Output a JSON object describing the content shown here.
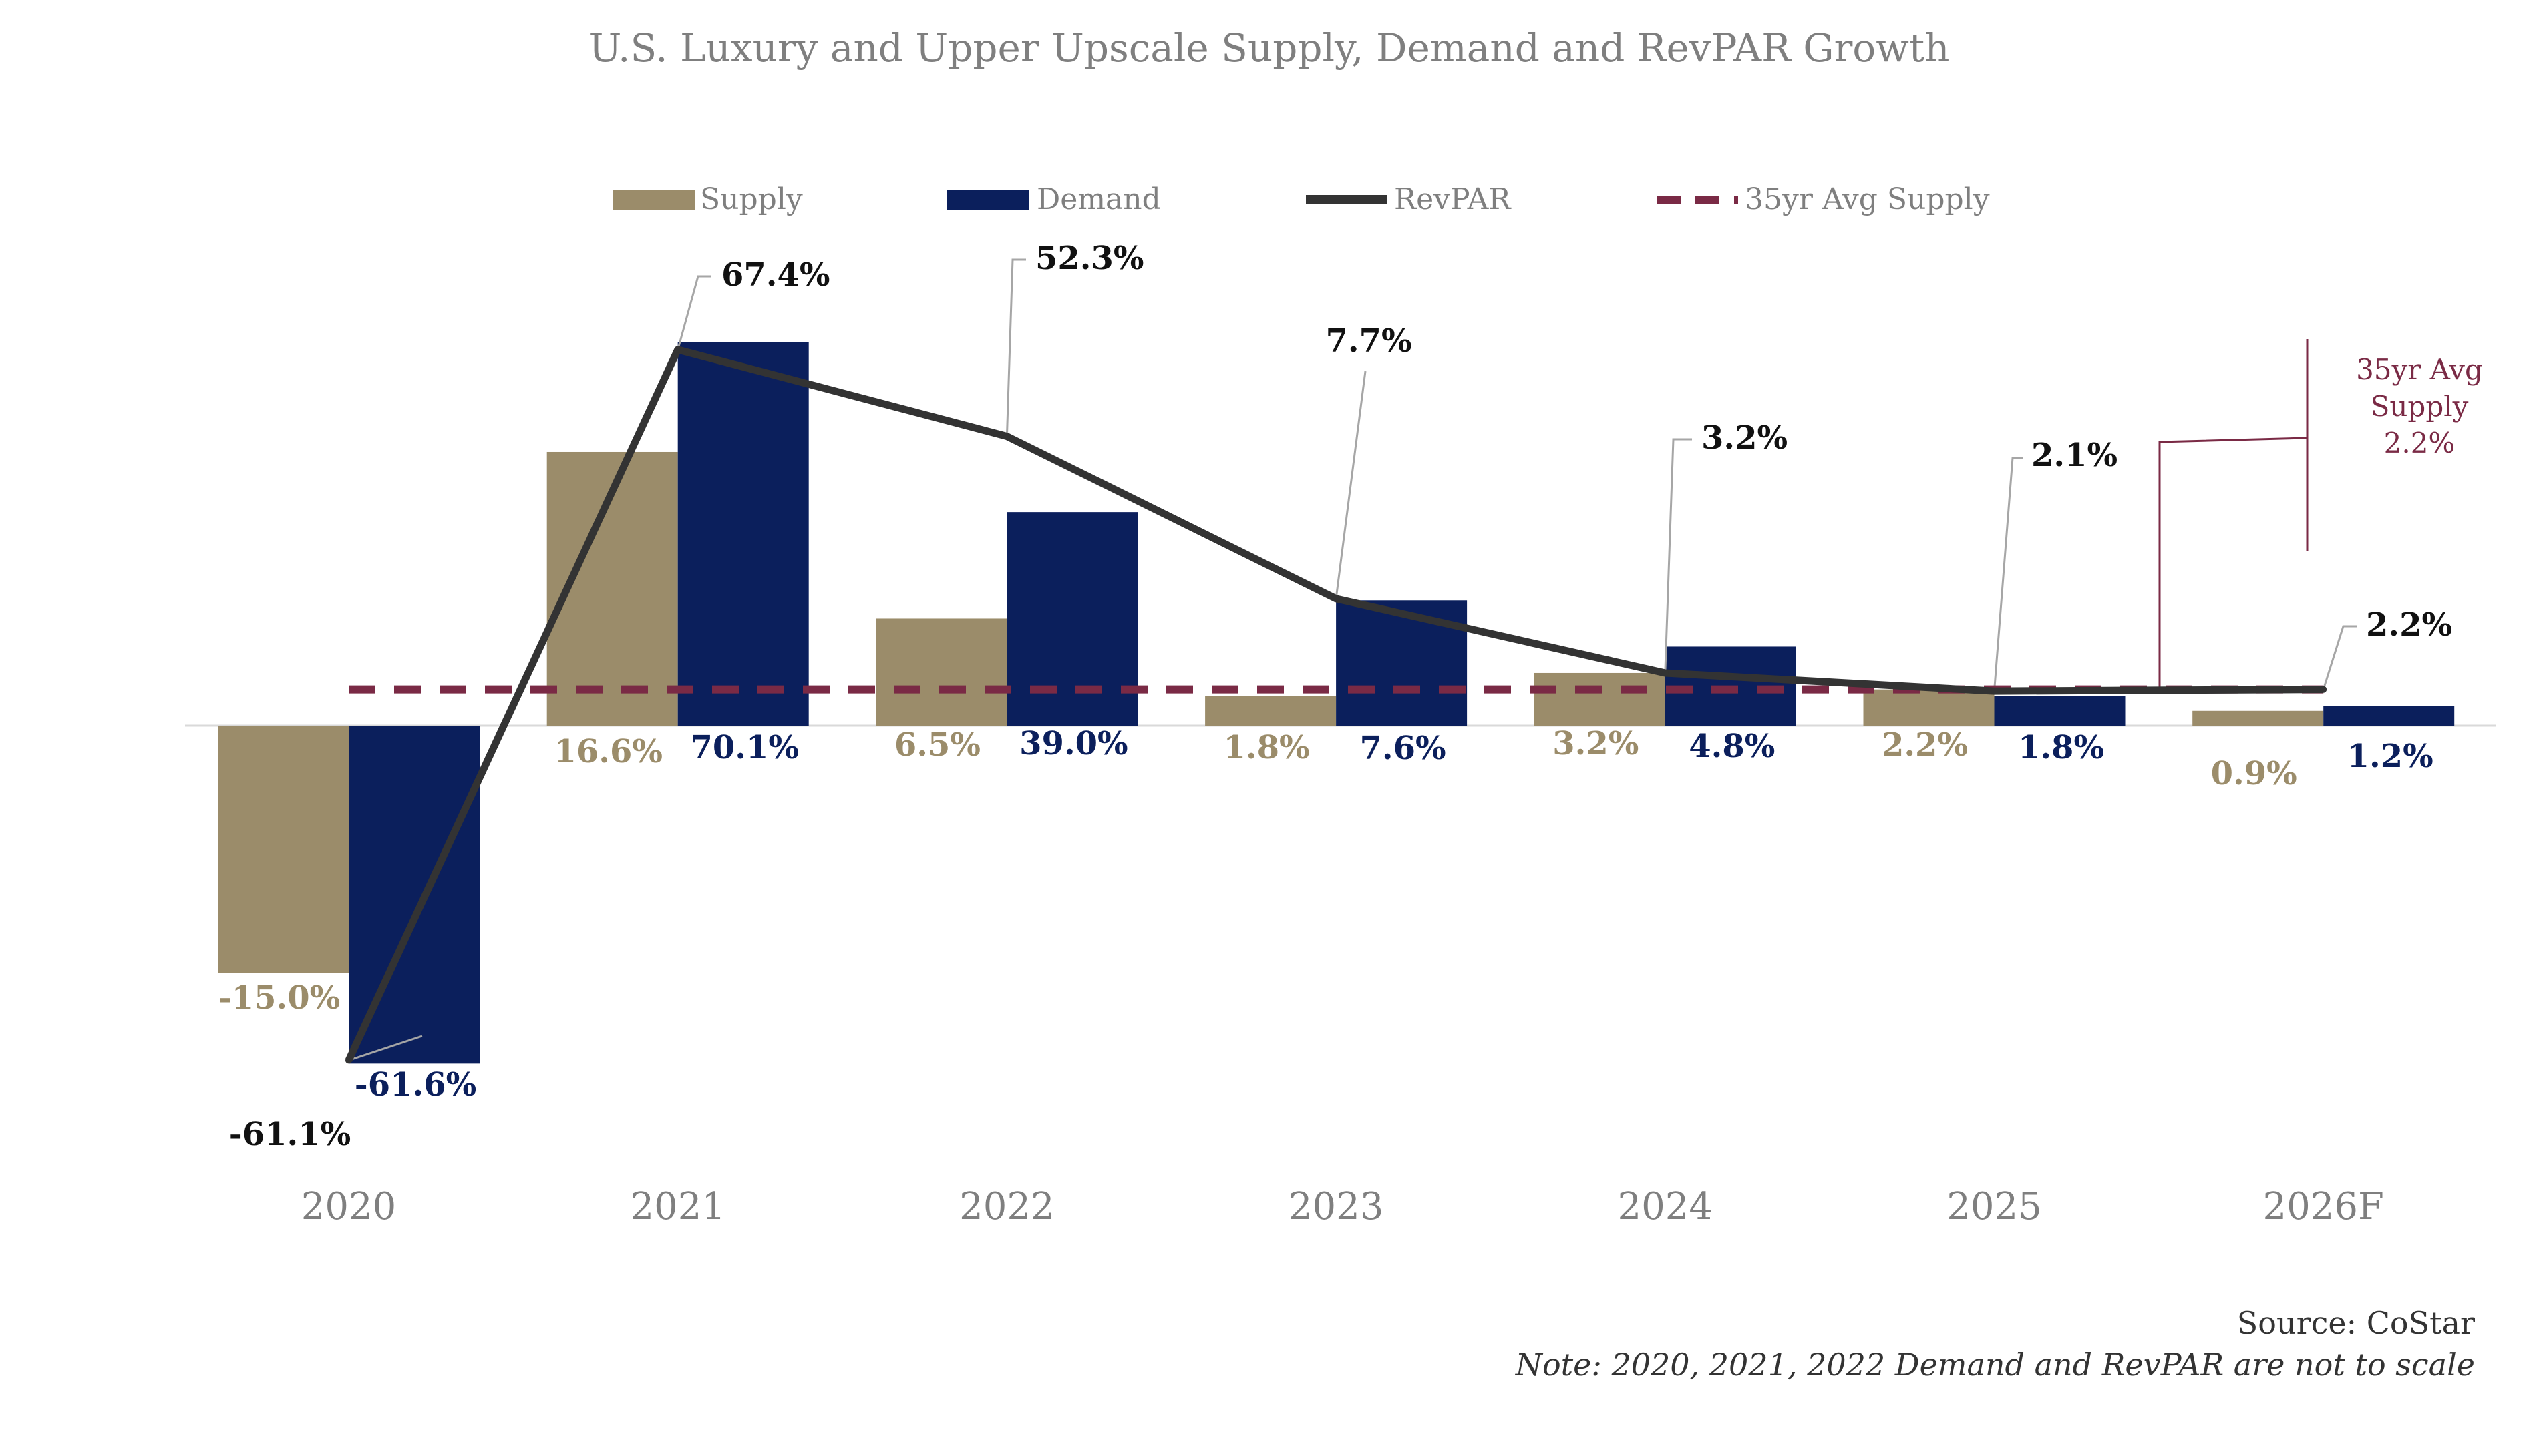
{
  "chart_data": {
    "type": "bar",
    "title": "U.S. Luxury and Upper Upscale Supply, Demand and RevPAR Growth",
    "categories": [
      "2020",
      "2021",
      "2022",
      "2023",
      "2024",
      "2025",
      "2026F"
    ],
    "series": [
      {
        "name": "Supply",
        "kind": "bar",
        "color": "#9b8c6a",
        "values": [
          -15.0,
          16.6,
          6.5,
          1.8,
          3.2,
          2.2,
          0.9
        ],
        "labels": [
          "-15.0%",
          "16.6%",
          "6.5%",
          "1.8%",
          "3.2%",
          "2.2%",
          "0.9%"
        ]
      },
      {
        "name": "Demand",
        "kind": "bar",
        "color": "#0b1f5c",
        "values": [
          -61.6,
          70.1,
          39.0,
          7.6,
          4.8,
          1.8,
          1.2
        ],
        "labels": [
          "-61.6%",
          "70.1%",
          "39.0%",
          "7.6%",
          "4.8%",
          "1.8%",
          "1.2%"
        ]
      },
      {
        "name": "RevPAR",
        "kind": "line",
        "color": "#333333",
        "values": [
          -61.1,
          67.4,
          52.3,
          7.7,
          3.2,
          2.1,
          2.2
        ],
        "labels": [
          "-61.1%",
          "67.4%",
          "52.3%",
          "7.7%",
          "3.2%",
          "2.1%",
          "2.2%"
        ]
      },
      {
        "name": "35yr Avg Supply",
        "kind": "reference-line",
        "color": "#7a2a45",
        "value": 2.2
      }
    ],
    "avg_callout": [
      "35yr Avg",
      "Supply",
      "2.2%"
    ],
    "scale_note": "2020, 2021, 2022 Demand and RevPAR values are drawn compressed (not to scale)",
    "source": "Source: CoStar",
    "note": "Note: 2020, 2021, 2022 Demand and RevPAR are not to scale"
  }
}
